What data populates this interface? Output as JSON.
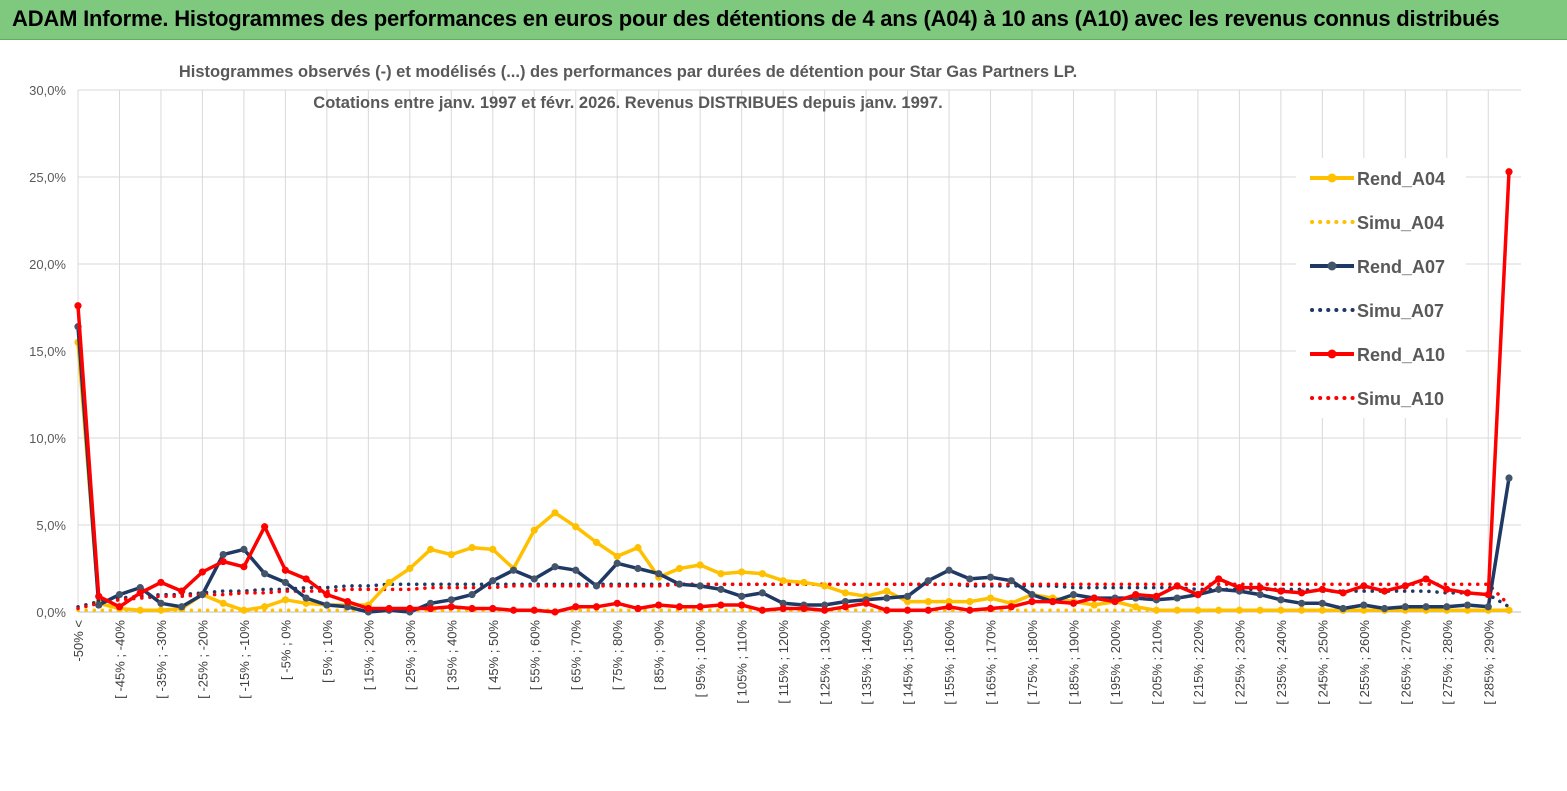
{
  "banner": {
    "title": "ADAM Informe. Histogrammes des performances en euros pour des détentions de 4 ans (A04) à 10 ans (A10) avec les revenus connus distribués"
  },
  "colors": {
    "banner_bg": "#7fc97f",
    "yellow": "#FFC000",
    "navy": "#1F3864",
    "red": "#FF0000",
    "grid": "#D9D9D9"
  },
  "chart_data": {
    "type": "line",
    "title_line1": "Histogrammes observés (-) et modélisés (...) des performances par durées de détention pour Star Gas Partners LP.",
    "title_line2": "Cotations entre janv. 1997 et févr. 2026. Revenus DISTRIBUES depuis janv. 1997.",
    "ylim": [
      0,
      30
    ],
    "yticks": [
      "0,0%",
      "5,0%",
      "10,0%",
      "15,0%",
      "20,0%",
      "25,0%",
      "30,0%"
    ],
    "x_tick_labels": [
      "-50% <",
      "[ -45% ; -40%",
      "[ -35% ; -30%",
      "[ -25% ; -20%",
      "[ -15% ; -10%",
      "[ -5% ; 0%",
      "[ 5% ; 10%",
      "[ 15% ; 20%",
      "[ 25% ; 30%",
      "[ 35% ; 40%",
      "[ 45% ; 50%",
      "[ 55% ; 60%",
      "[ 65% ; 70%",
      "[ 75% ; 80%",
      "[ 85% ; 90%",
      "[ 95% ; 100%",
      "[ 105% ; 110%",
      "[ 115% ; 120%",
      "[ 125% ; 130%",
      "[ 135% ; 140%",
      "[ 145% ; 150%",
      "[ 155% ; 160%",
      "[ 165% ; 170%",
      "[ 175% ; 180%",
      "[ 185% ; 190%",
      "[ 195% ; 200%",
      "[ 205% ; 210%",
      "[ 215% ; 220%",
      "[ 225% ; 230%",
      "[ 235% ; 240%",
      "[ 245% ; 250%",
      "[ 255% ; 260%",
      "[ 265% ; 270%",
      "[ 275% ; 280%",
      "[ 285% ; 290%"
    ],
    "n_points": 70,
    "legend_position": "right",
    "series": [
      {
        "name": "Rend_A04",
        "style": "solid",
        "color": "#FFC000",
        "values": [
          15.5,
          0.5,
          0.2,
          0.1,
          0.1,
          0.2,
          1.0,
          0.5,
          0.1,
          0.3,
          0.7,
          0.5,
          0.4,
          0.4,
          0.4,
          1.7,
          2.5,
          3.6,
          3.3,
          3.7,
          3.6,
          2.5,
          4.7,
          5.7,
          4.9,
          4.0,
          3.2,
          3.7,
          2.0,
          2.5,
          2.7,
          2.2,
          2.3,
          2.2,
          1.8,
          1.7,
          1.5,
          1.1,
          0.9,
          1.2,
          0.6,
          0.6,
          0.6,
          0.6,
          0.8,
          0.5,
          1.0,
          0.8,
          0.6,
          0.4,
          0.6,
          0.3,
          0.1,
          0.1,
          0.1,
          0.1,
          0.1,
          0.1,
          0.1,
          0.1,
          0.1,
          0.1,
          0.1,
          0.1,
          0.1,
          0.1,
          0.1,
          0.1,
          0.1,
          0.1
        ]
      },
      {
        "name": "Simu_A04",
        "style": "dotted",
        "color": "#FFC000",
        "values": [
          0.1,
          0.1,
          0.1,
          0.1,
          0.1,
          0.1,
          0.1,
          0.1,
          0.1,
          0.1,
          0.1,
          0.1,
          0.1,
          0.1,
          0.1,
          0.1,
          0.1,
          0.1,
          0.1,
          0.1,
          0.1,
          0.1,
          0.1,
          0.1,
          0.1,
          0.1,
          0.1,
          0.1,
          0.1,
          0.1,
          0.1,
          0.1,
          0.1,
          0.1,
          0.1,
          0.1,
          0.1,
          0.1,
          0.1,
          0.1,
          0.1,
          0.1,
          0.1,
          0.1,
          0.1,
          0.1,
          0.1,
          0.1,
          0.1,
          0.1,
          0.1,
          0.1,
          0.1,
          0.1,
          0.1,
          0.1,
          0.1,
          0.1,
          0.1,
          0.1,
          0.1,
          0.1,
          0.1,
          0.1,
          0.1,
          0.1,
          0.1,
          0.1,
          0.1,
          0.1
        ]
      },
      {
        "name": "Rend_A07",
        "style": "solid",
        "color": "#1F3864",
        "values": [
          16.4,
          0.4,
          1.0,
          1.4,
          0.5,
          0.3,
          1.0,
          3.3,
          3.6,
          2.2,
          1.7,
          0.8,
          0.4,
          0.3,
          0.0,
          0.1,
          0.0,
          0.5,
          0.7,
          1.0,
          1.8,
          2.4,
          1.9,
          2.6,
          2.4,
          1.5,
          2.8,
          2.5,
          2.2,
          1.6,
          1.5,
          1.3,
          0.9,
          1.1,
          0.5,
          0.4,
          0.4,
          0.6,
          0.7,
          0.8,
          0.9,
          1.8,
          2.4,
          1.9,
          2.0,
          1.8,
          1.0,
          0.6,
          1.0,
          0.8,
          0.8,
          0.8,
          0.7,
          0.8,
          1.0,
          1.3,
          1.2,
          1.0,
          0.7,
          0.5,
          0.5,
          0.2,
          0.4,
          0.2,
          0.3,
          0.3,
          0.3,
          0.4,
          0.3,
          7.7
        ]
      },
      {
        "name": "Simu_A07",
        "style": "dotted",
        "color": "#1F3864",
        "values": [
          0.3,
          0.6,
          0.8,
          0.9,
          1.0,
          1.0,
          1.1,
          1.2,
          1.2,
          1.3,
          1.3,
          1.4,
          1.4,
          1.5,
          1.5,
          1.6,
          1.6,
          1.6,
          1.6,
          1.6,
          1.6,
          1.6,
          1.6,
          1.6,
          1.6,
          1.6,
          1.6,
          1.6,
          1.6,
          1.6,
          1.6,
          1.6,
          1.6,
          1.6,
          1.6,
          1.6,
          1.6,
          1.6,
          1.6,
          1.6,
          1.6,
          1.6,
          1.6,
          1.5,
          1.5,
          1.5,
          1.5,
          1.5,
          1.4,
          1.4,
          1.4,
          1.4,
          1.4,
          1.4,
          1.3,
          1.3,
          1.3,
          1.3,
          1.3,
          1.3,
          1.2,
          1.2,
          1.2,
          1.2,
          1.2,
          1.2,
          1.1,
          1.1,
          1.0,
          0.3
        ]
      },
      {
        "name": "Rend_A10",
        "style": "solid",
        "color": "#FF0000",
        "values": [
          17.6,
          0.9,
          0.3,
          1.1,
          1.7,
          1.2,
          2.3,
          2.9,
          2.6,
          4.9,
          2.4,
          1.9,
          1.0,
          0.6,
          0.2,
          0.2,
          0.2,
          0.2,
          0.3,
          0.2,
          0.2,
          0.1,
          0.1,
          0.0,
          0.3,
          0.3,
          0.5,
          0.2,
          0.4,
          0.3,
          0.3,
          0.4,
          0.4,
          0.1,
          0.2,
          0.2,
          0.1,
          0.3,
          0.5,
          0.1,
          0.1,
          0.1,
          0.3,
          0.1,
          0.2,
          0.3,
          0.6,
          0.6,
          0.5,
          0.8,
          0.6,
          1.0,
          0.9,
          1.5,
          1.0,
          1.9,
          1.4,
          1.4,
          1.2,
          1.1,
          1.3,
          1.1,
          1.5,
          1.2,
          1.5,
          1.9,
          1.3,
          1.1,
          1.0,
          25.3
        ]
      },
      {
        "name": "Simu_A10",
        "style": "dotted",
        "color": "#FF0000",
        "values": [
          0.2,
          0.5,
          0.7,
          0.8,
          0.9,
          0.9,
          1.0,
          1.0,
          1.1,
          1.1,
          1.2,
          1.2,
          1.2,
          1.3,
          1.3,
          1.3,
          1.3,
          1.4,
          1.4,
          1.4,
          1.4,
          1.5,
          1.5,
          1.5,
          1.5,
          1.5,
          1.5,
          1.5,
          1.5,
          1.6,
          1.6,
          1.6,
          1.6,
          1.6,
          1.6,
          1.6,
          1.6,
          1.6,
          1.6,
          1.6,
          1.6,
          1.6,
          1.6,
          1.6,
          1.6,
          1.6,
          1.6,
          1.6,
          1.6,
          1.6,
          1.6,
          1.6,
          1.6,
          1.6,
          1.6,
          1.6,
          1.6,
          1.6,
          1.6,
          1.6,
          1.6,
          1.6,
          1.6,
          1.6,
          1.6,
          1.6,
          1.6,
          1.6,
          1.6,
          0.4
        ]
      }
    ]
  }
}
